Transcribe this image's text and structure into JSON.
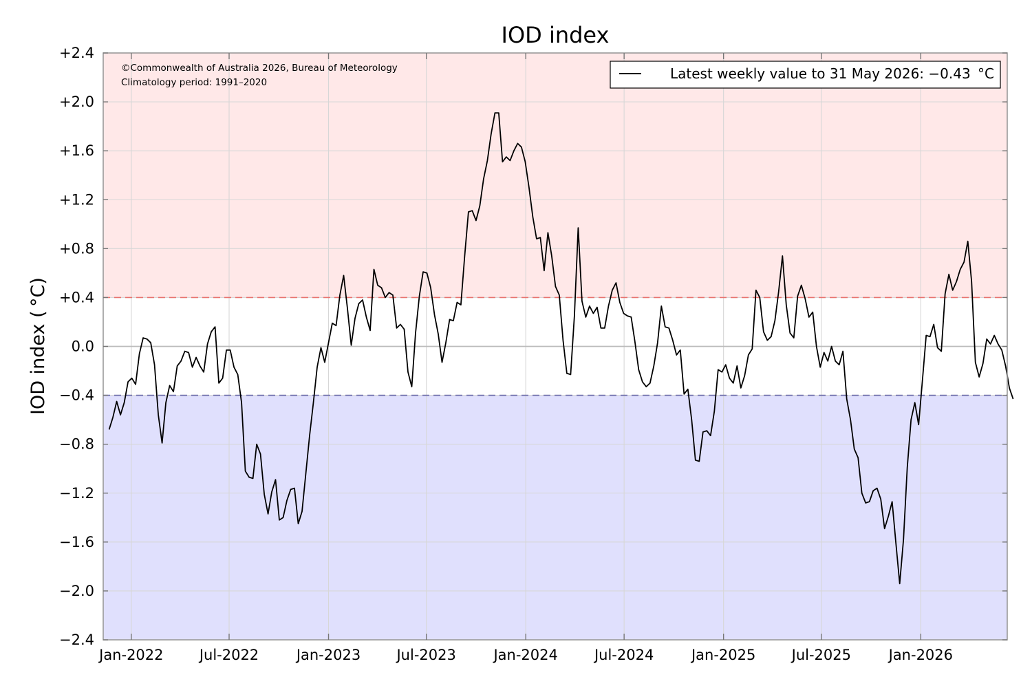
{
  "chart_data": {
    "type": "line",
    "title": "IOD index",
    "ylabel": "IOD index ( °C)",
    "ylim": [
      -2.4,
      2.4
    ],
    "xlim": [
      "2021-11-10",
      "2026-06-10"
    ],
    "y_ticks": [
      2.4,
      2.0,
      1.6,
      1.2,
      0.8,
      0.4,
      0.0,
      -0.4,
      -0.8,
      -1.2,
      -1.6,
      -2.0,
      -2.4
    ],
    "y_tick_labels": [
      "+2.4",
      "+2.0",
      "+1.6",
      "+1.2",
      "+0.8",
      "+0.4",
      "0.0",
      "−0.4",
      "−0.8",
      "−1.2",
      "−1.6",
      "−2.0",
      "−2.4"
    ],
    "x_ticks": [
      "2022-01-01",
      "2022-07-01",
      "2023-01-01",
      "2023-07-01",
      "2024-01-01",
      "2024-07-01",
      "2025-01-01",
      "2025-07-01",
      "2026-01-01"
    ],
    "x_tick_labels": [
      "Jan-2022",
      "Jul-2022",
      "Jan-2023",
      "Jul-2023",
      "Jan-2024",
      "Jul-2024",
      "Jan-2025",
      "Jul-2025",
      "Jan-2026"
    ],
    "grid": true,
    "thresholds": {
      "positive": 0.4,
      "negative": -0.4
    },
    "colors": {
      "positive_band": "#ffe8e8",
      "negative_band": "#e0e0fd",
      "positive_line": "#e8736f",
      "negative_line": "#6b6ba8",
      "series": "#000000",
      "zero_line": "#bbbbbb",
      "grid": "#d7d7d7",
      "frame": "#999999"
    },
    "annotations": [
      "©Commonwealth of Australia 2026, Bureau of Meteorology",
      "Climatology period: 1991–2020"
    ],
    "legend_position": "top-right",
    "series": [
      {
        "name": "Latest weekly value to 31 May 2026: −0.43  °C",
        "start_date": "2021-11-21",
        "step_days": 7,
        "values": [
          -0.68,
          -0.58,
          -0.45,
          -0.56,
          -0.46,
          -0.29,
          -0.26,
          -0.31,
          -0.06,
          0.07,
          0.06,
          0.03,
          -0.15,
          -0.56,
          -0.79,
          -0.46,
          -0.32,
          -0.37,
          -0.16,
          -0.12,
          -0.04,
          -0.05,
          -0.17,
          -0.09,
          -0.16,
          -0.21,
          0.02,
          0.12,
          0.16,
          -0.3,
          -0.26,
          -0.03,
          -0.03,
          -0.17,
          -0.23,
          -0.46,
          -1.02,
          -1.07,
          -1.08,
          -0.8,
          -0.88,
          -1.21,
          -1.37,
          -1.19,
          -1.09,
          -1.42,
          -1.4,
          -1.26,
          -1.17,
          -1.16,
          -1.45,
          -1.35,
          -1.04,
          -0.73,
          -0.46,
          -0.17,
          -0.01,
          -0.13,
          0.03,
          0.19,
          0.17,
          0.42,
          0.58,
          0.31,
          0.01,
          0.23,
          0.35,
          0.38,
          0.24,
          0.13,
          0.63,
          0.5,
          0.48,
          0.4,
          0.44,
          0.42,
          0.15,
          0.18,
          0.14,
          -0.21,
          -0.33,
          0.11,
          0.41,
          0.61,
          0.6,
          0.48,
          0.26,
          0.1,
          -0.13,
          0.03,
          0.22,
          0.21,
          0.36,
          0.34,
          0.74,
          1.1,
          1.11,
          1.03,
          1.15,
          1.37,
          1.52,
          1.74,
          1.91,
          1.91,
          1.51,
          1.55,
          1.52,
          1.6,
          1.66,
          1.63,
          1.51,
          1.3,
          1.06,
          0.88,
          0.89,
          0.62,
          0.93,
          0.74,
          0.49,
          0.42,
          0.05,
          -0.22,
          -0.23,
          0.25,
          0.97,
          0.37,
          0.24,
          0.33,
          0.27,
          0.32,
          0.15,
          0.15,
          0.33,
          0.46,
          0.52,
          0.36,
          0.27,
          0.25,
          0.24,
          0.04,
          -0.19,
          -0.29,
          -0.33,
          -0.3,
          -0.16,
          0.03,
          0.33,
          0.16,
          0.15,
          0.05,
          -0.07,
          -0.03,
          -0.39,
          -0.35,
          -0.6,
          -0.93,
          -0.94,
          -0.7,
          -0.69,
          -0.73,
          -0.53,
          -0.19,
          -0.21,
          -0.15,
          -0.26,
          -0.3,
          -0.16,
          -0.34,
          -0.24,
          -0.07,
          -0.02,
          0.46,
          0.4,
          0.12,
          0.05,
          0.08,
          0.21,
          0.45,
          0.74,
          0.34,
          0.11,
          0.07,
          0.41,
          0.5,
          0.39,
          0.24,
          0.28,
          0.0,
          -0.17,
          -0.05,
          -0.12,
          0.0,
          -0.12,
          -0.15,
          -0.04,
          -0.43,
          -0.6,
          -0.84,
          -0.91,
          -1.2,
          -1.28,
          -1.27,
          -1.18,
          -1.16,
          -1.25,
          -1.49,
          -1.39,
          -1.27,
          -1.61,
          -1.94,
          -1.58,
          -0.99,
          -0.6,
          -0.46,
          -0.64,
          -0.28,
          0.09,
          0.08,
          0.18,
          -0.01,
          -0.04,
          0.43,
          0.59,
          0.46,
          0.53,
          0.63,
          0.69,
          0.86,
          0.53,
          -0.13,
          -0.25,
          -0.14,
          0.06,
          0.02,
          0.09,
          0.02,
          -0.03,
          -0.16,
          -0.34,
          -0.43
        ]
      }
    ]
  }
}
